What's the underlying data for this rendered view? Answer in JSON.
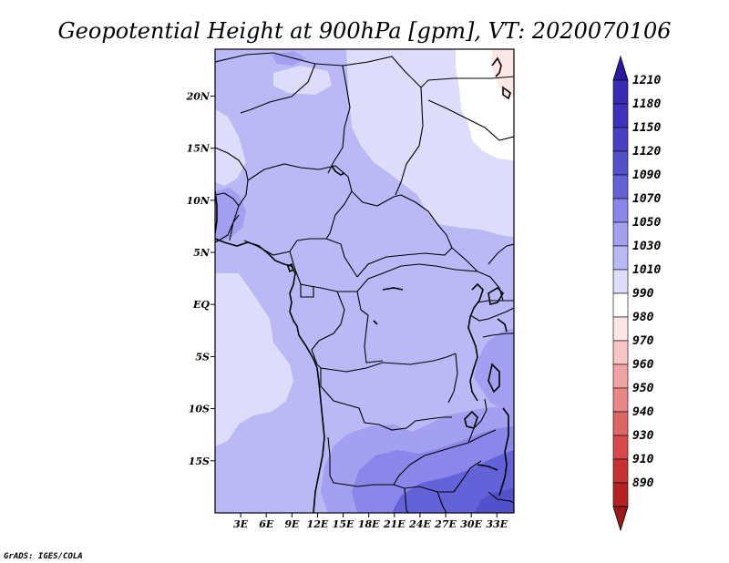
{
  "title": "Geopotential Height at 900hPa [gpm], VT: 2020070106",
  "credit": "GrADS: IGES/COLA",
  "map": {
    "lon_range": [
      0,
      35
    ],
    "lat_range": [
      -20,
      24.5
    ],
    "y_ticks": [
      {
        "lat": 20,
        "label": "20N"
      },
      {
        "lat": 15,
        "label": "15N"
      },
      {
        "lat": 10,
        "label": "10N"
      },
      {
        "lat": 5,
        "label": "5N"
      },
      {
        "lat": 0,
        "label": "EQ"
      },
      {
        "lat": -5,
        "label": "5S"
      },
      {
        "lat": -10,
        "label": "10S"
      },
      {
        "lat": -15,
        "label": "15S"
      }
    ],
    "x_ticks": [
      {
        "lon": 3,
        "label": "3E"
      },
      {
        "lon": 6,
        "label": "6E"
      },
      {
        "lon": 9,
        "label": "9E"
      },
      {
        "lon": 12,
        "label": "12E"
      },
      {
        "lon": 15,
        "label": "15E"
      },
      {
        "lon": 18,
        "label": "18E"
      },
      {
        "lon": 21,
        "label": "21E"
      },
      {
        "lon": 24,
        "label": "24E"
      },
      {
        "lon": 27,
        "label": "27E"
      },
      {
        "lon": 30,
        "label": "30E"
      },
      {
        "lon": 33,
        "label": "33E"
      }
    ]
  },
  "colorbar": {
    "levels": [
      {
        "label": "1210",
        "color": "#3a2ab8"
      },
      {
        "label": "1180",
        "color": "#3e32bc"
      },
      {
        "label": "1150",
        "color": "#4840c4"
      },
      {
        "label": "1120",
        "color": "#5350cc"
      },
      {
        "label": "1090",
        "color": "#6462d8"
      },
      {
        "label": "1070",
        "color": "#8a86ea"
      },
      {
        "label": "1050",
        "color": "#a3a0f2"
      },
      {
        "label": "1030",
        "color": "#bab8f5"
      },
      {
        "label": "1010",
        "color": "#dddcfa"
      },
      {
        "label": "990",
        "color": "#ffffff"
      },
      {
        "label": "980",
        "color": "#fde6e6"
      },
      {
        "label": "970",
        "color": "#f8c4c4"
      },
      {
        "label": "960",
        "color": "#f2a2a2"
      },
      {
        "label": "950",
        "color": "#e98686"
      },
      {
        "label": "940",
        "color": "#e06666"
      },
      {
        "label": "930",
        "color": "#d84a4a"
      },
      {
        "label": "910",
        "color": "#c93232"
      },
      {
        "label": "890",
        "color": "#b42222"
      }
    ],
    "top_triangle_color": "#2a1aa0",
    "bottom_triangle_color": "#9a1a1a"
  }
}
